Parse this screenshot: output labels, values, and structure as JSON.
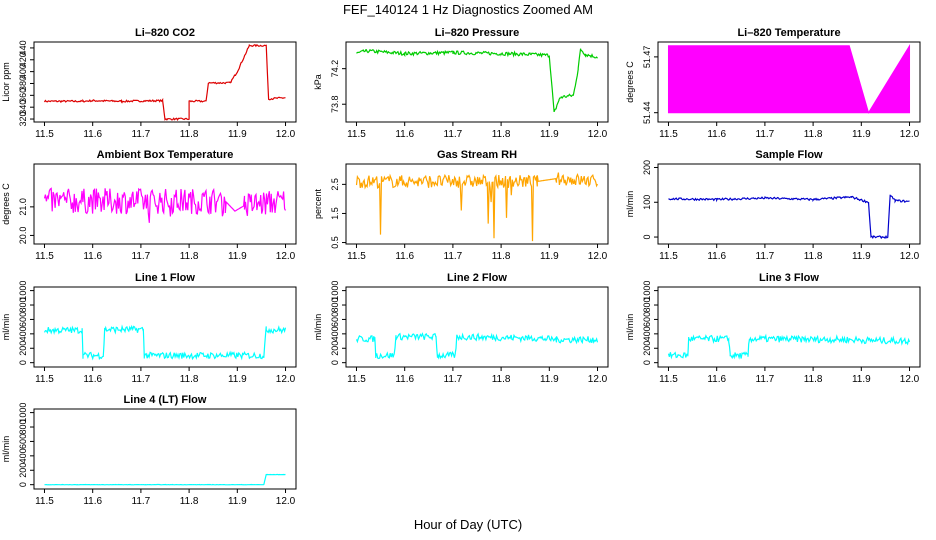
{
  "figure": {
    "title": "FEF_140124  1 Hz Diagnostics Zoomed AM",
    "xlabel": "Hour of Day (UTC)"
  },
  "chart_data": [
    {
      "type": "line",
      "title": "Li–820 CO2",
      "ylabel": "Licor ppm",
      "color": "#dd0000",
      "xlim": [
        11.5,
        12.0
      ],
      "xticks": [
        "11.5",
        "11.6",
        "11.7",
        "11.8",
        "11.9",
        "12.0"
      ],
      "ylim": [
        315,
        450
      ],
      "yticks": [
        320,
        340,
        360,
        380,
        400,
        420,
        440
      ],
      "series": [
        {
          "name": "CO2",
          "x": [
            11.5,
            11.58,
            11.6,
            11.66,
            11.745,
            11.75,
            11.8,
            11.8,
            11.835,
            11.84,
            11.885,
            11.9,
            11.925,
            11.96,
            11.965,
            12.0
          ],
          "y": [
            350,
            350,
            351,
            350,
            351,
            320,
            320,
            350,
            350,
            381,
            381,
            400,
            444,
            444,
            354,
            356
          ]
        }
      ]
    },
    {
      "type": "line",
      "title": "Li–820 Pressure",
      "ylabel": "kPa",
      "color": "#00cc00",
      "xlim": [
        11.5,
        12.0
      ],
      "xticks": [
        "11.5",
        "11.6",
        "11.7",
        "11.8",
        "11.9",
        "12.0"
      ],
      "ylim": [
        73.6,
        74.5
      ],
      "yticks": [
        "73.8",
        "74.2"
      ],
      "series": [
        {
          "name": "Pressure",
          "x": [
            11.5,
            11.52,
            11.6,
            11.7,
            11.8,
            11.86,
            11.9,
            11.91,
            11.92,
            11.925,
            11.95,
            11.96,
            11.965,
            11.975,
            12.0
          ],
          "y": [
            74.37,
            74.4,
            74.37,
            74.38,
            74.37,
            74.36,
            74.35,
            73.7,
            73.85,
            73.88,
            73.9,
            74.2,
            74.42,
            74.36,
            74.33
          ]
        }
      ]
    },
    {
      "type": "area",
      "title": "Li–820 Temperature",
      "ylabel": "degrees C",
      "color": "#ff00ff",
      "xlim": [
        11.5,
        12.0
      ],
      "xticks": [
        "11.5",
        "11.6",
        "11.7",
        "11.8",
        "11.9",
        "12.0"
      ],
      "ylim": [
        51.435,
        51.478
      ],
      "yticks": [
        "51.44",
        "51.47"
      ],
      "series": [
        {
          "name": "Temperature",
          "x": [
            11.5,
            11.875,
            11.915,
            12.0
          ],
          "y_low": [
            51.44,
            51.44,
            51.44,
            51.44
          ],
          "y_high": [
            51.476,
            51.476,
            51.44,
            51.476
          ]
        }
      ]
    },
    {
      "type": "line",
      "title": "Ambient Box Temperature",
      "ylabel": "degrees C",
      "color": "#ff00ff",
      "xlim": [
        11.5,
        12.0
      ],
      "xticks": [
        "11.5",
        "11.6",
        "11.7",
        "11.8",
        "11.9",
        "12.0"
      ],
      "ylim": [
        19.7,
        22.5
      ],
      "yticks": [
        "20.0",
        "21.0"
      ],
      "series": [
        {
          "name": "Box Temp",
          "x": [
            11.5,
            11.875,
            11.895,
            11.915,
            12.0
          ],
          "y": [
            21.2,
            21.2,
            20.85,
            21.05,
            21.2
          ]
        }
      ]
    },
    {
      "type": "line",
      "title": "Gas Stream RH",
      "ylabel": "percent",
      "color": "#ffa500",
      "xlim": [
        11.5,
        12.0
      ],
      "xticks": [
        "11.5",
        "11.6",
        "11.7",
        "11.8",
        "11.9",
        "12.0"
      ],
      "ylim": [
        0.45,
        3.2
      ],
      "yticks": [
        "0.5",
        "1.5",
        "2.5"
      ],
      "series": [
        {
          "name": "RH",
          "x": [
            11.5,
            11.875,
            11.915,
            12.0
          ],
          "y": [
            2.6,
            2.6,
            2.7,
            2.6
          ]
        }
      ]
    },
    {
      "type": "line",
      "title": "Sample Flow",
      "ylabel": "ml/min",
      "color": "#0000cc",
      "xlim": [
        11.5,
        12.0
      ],
      "xticks": [
        "11.5",
        "11.6",
        "11.7",
        "11.8",
        "11.9",
        "12.0"
      ],
      "ylim": [
        -20,
        210
      ],
      "yticks": [
        0,
        100,
        200
      ],
      "series": [
        {
          "name": "Sample Flow",
          "x": [
            11.5,
            11.6,
            11.7,
            11.8,
            11.88,
            11.915,
            11.92,
            11.955,
            11.96,
            11.97,
            12.0
          ],
          "y": [
            110,
            108,
            112,
            108,
            115,
            100,
            0,
            0,
            120,
            105,
            102
          ]
        }
      ]
    },
    {
      "type": "line",
      "title": "Line 1 Flow",
      "ylabel": "ml/min",
      "color": "#00ffff",
      "xlim": [
        11.5,
        12.0
      ],
      "xticks": [
        "11.5",
        "11.6",
        "11.7",
        "11.8",
        "11.9",
        "12.0"
      ],
      "ylim": [
        -60,
        1050
      ],
      "yticks": [
        0,
        200,
        400,
        600,
        800,
        1000
      ],
      "series": [
        {
          "name": "Line 1",
          "x": [
            11.5,
            11.578,
            11.58,
            11.622,
            11.625,
            11.705,
            11.707,
            11.955,
            11.96,
            12.0
          ],
          "y": [
            450,
            450,
            100,
            100,
            460,
            460,
            100,
            100,
            460,
            450
          ]
        }
      ]
    },
    {
      "type": "line",
      "title": "Line 2 Flow",
      "ylabel": "ml/min",
      "color": "#00ffff",
      "xlim": [
        11.5,
        12.0
      ],
      "xticks": [
        "11.5",
        "11.6",
        "11.7",
        "11.8",
        "11.9",
        "12.0"
      ],
      "ylim": [
        -60,
        1050
      ],
      "yticks": [
        0,
        200,
        400,
        600,
        800,
        1000
      ],
      "series": [
        {
          "name": "Line 2",
          "x": [
            11.5,
            11.538,
            11.54,
            11.578,
            11.582,
            11.665,
            11.668,
            11.705,
            11.708,
            11.875,
            11.915,
            12.0
          ],
          "y": [
            330,
            330,
            100,
            100,
            360,
            360,
            100,
            100,
            360,
            340,
            320,
            320
          ]
        }
      ]
    },
    {
      "type": "line",
      "title": "Line 3 Flow",
      "ylabel": "ml/min",
      "color": "#00ffff",
      "xlim": [
        11.5,
        12.0
      ],
      "xticks": [
        "11.5",
        "11.6",
        "11.7",
        "11.8",
        "11.9",
        "12.0"
      ],
      "ylim": [
        -60,
        1050
      ],
      "yticks": [
        0,
        200,
        400,
        600,
        800,
        1000
      ],
      "series": [
        {
          "name": "Line 3",
          "x": [
            11.5,
            11.54,
            11.542,
            11.625,
            11.628,
            11.665,
            11.668,
            11.875,
            11.915,
            12.0
          ],
          "y": [
            100,
            100,
            330,
            330,
            100,
            100,
            330,
            320,
            310,
            300
          ]
        }
      ]
    },
    {
      "type": "line",
      "title": "Line 4 (LT) Flow",
      "ylabel": "ml/min",
      "color": "#00ffff",
      "xlim": [
        11.5,
        12.0
      ],
      "xticks": [
        "11.5",
        "11.6",
        "11.7",
        "11.8",
        "11.9",
        "12.0"
      ],
      "ylim": [
        -60,
        1050
      ],
      "yticks": [
        0,
        200,
        400,
        600,
        800,
        1000
      ],
      "series": [
        {
          "name": "Line 4",
          "x": [
            11.5,
            11.955,
            11.96,
            12.0
          ],
          "y": [
            0,
            0,
            140,
            140
          ]
        }
      ]
    }
  ]
}
